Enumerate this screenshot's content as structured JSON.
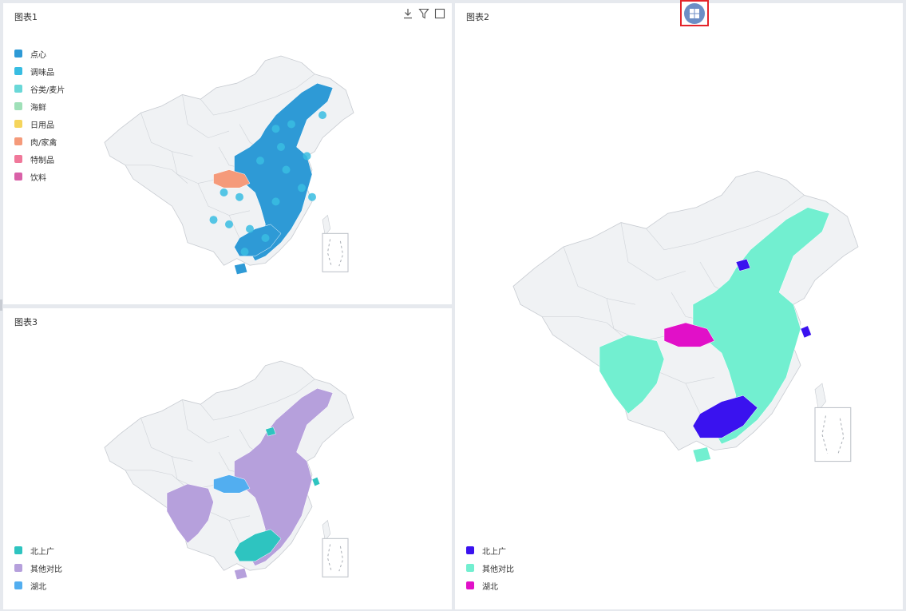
{
  "panels": [
    {
      "title": "图表1",
      "legend": [
        {
          "label": "点心",
          "color": "#2e9ad6"
        },
        {
          "label": "调味品",
          "color": "#38bde2"
        },
        {
          "label": "谷类/麦片",
          "color": "#6ad8d8"
        },
        {
          "label": "海鲜",
          "color": "#9fe0b8"
        },
        {
          "label": "日用品",
          "color": "#f5d55c"
        },
        {
          "label": "肉/家禽",
          "color": "#f59a7a"
        },
        {
          "label": "特制品",
          "color": "#f0789a"
        },
        {
          "label": "饮料",
          "color": "#d961a8"
        }
      ],
      "icons": [
        "download-icon",
        "filter-icon",
        "maximize-icon"
      ]
    },
    {
      "title": "图表2",
      "legend": [
        {
          "label": "北上广",
          "color": "#3a12ef"
        },
        {
          "label": "其他对比",
          "color": "#72efd0"
        },
        {
          "label": "湖北",
          "color": "#e110c8"
        }
      ]
    },
    {
      "title": "图表3",
      "legend": [
        {
          "label": "北上广",
          "color": "#2ec4c0"
        },
        {
          "label": "其他对比",
          "color": "#b6a0dc"
        },
        {
          "label": "湖北",
          "color": "#52aef0"
        }
      ]
    }
  ],
  "layout_button": {
    "icon": "grid-layout-icon",
    "accent": "#6d8ec5",
    "highlight": "#e4252b"
  }
}
